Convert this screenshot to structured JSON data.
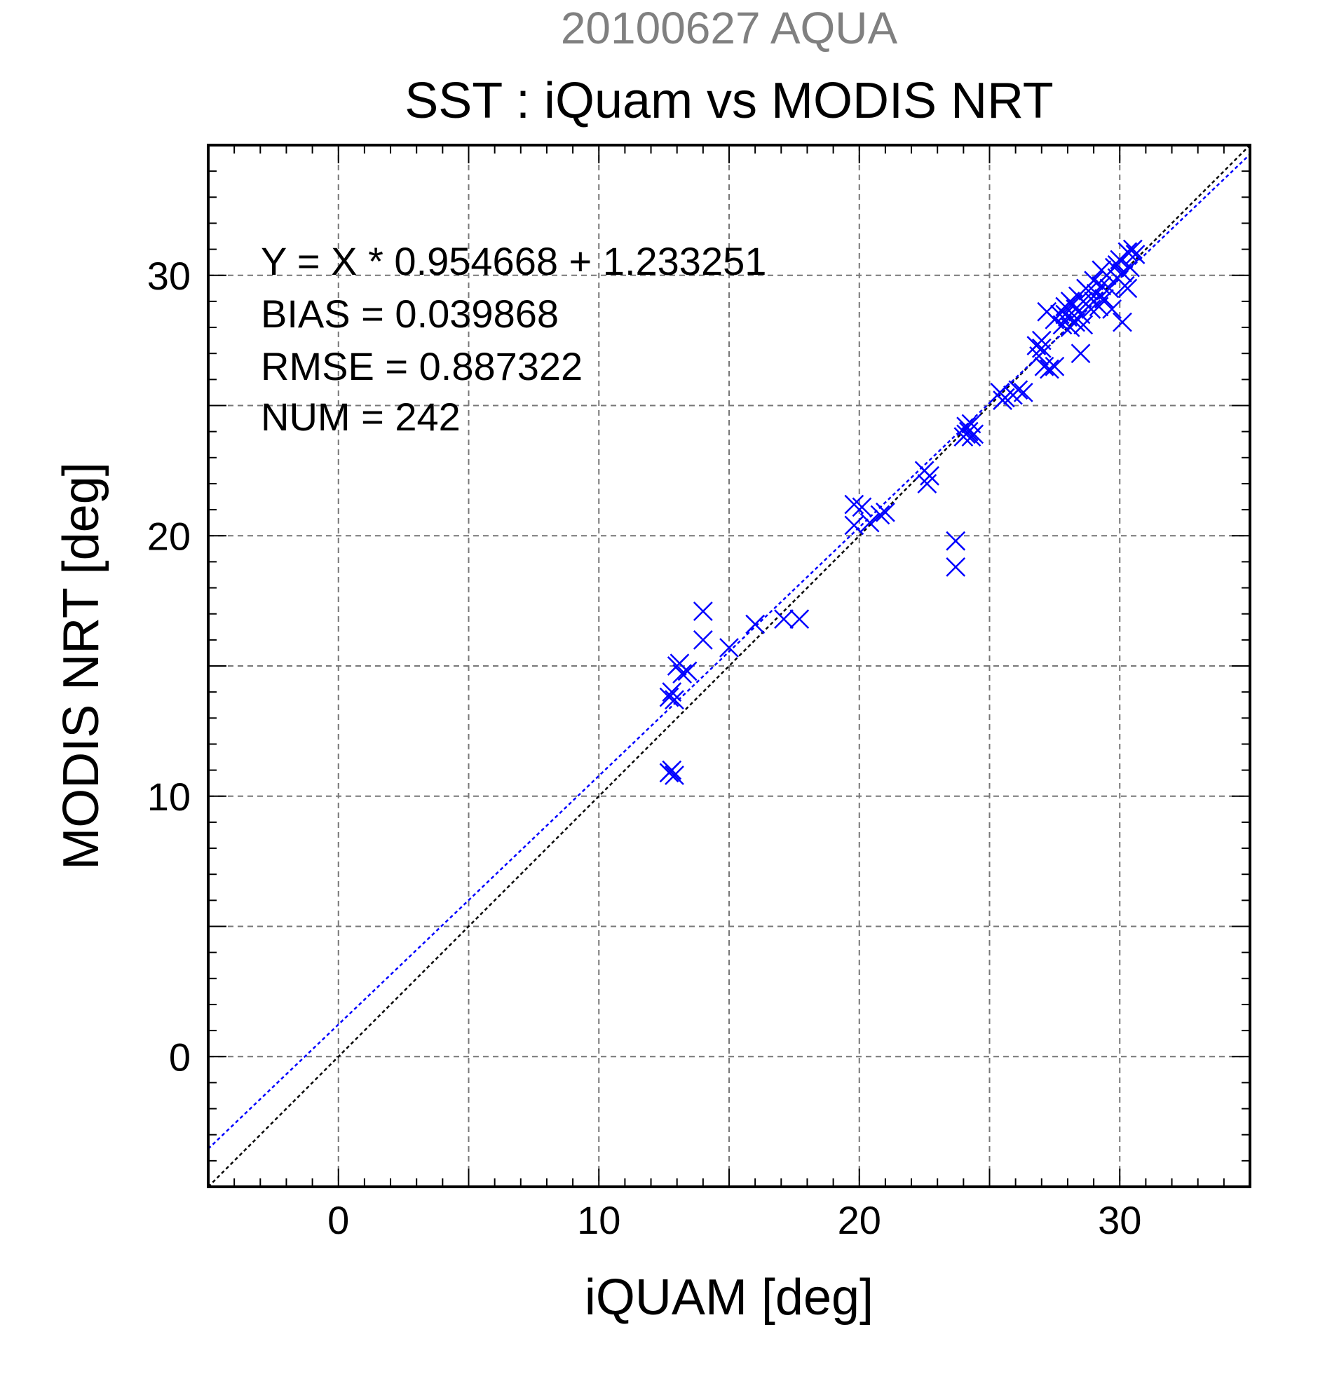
{
  "chart_data": {
    "type": "scatter",
    "supertitle": "20100627 AQUA",
    "title": "SST : iQuam vs MODIS NRT",
    "xlabel": "iQUAM [deg]",
    "ylabel": "MODIS NRT [deg]",
    "xlim": [
      -5,
      35
    ],
    "ylim": [
      -5,
      35
    ],
    "x_ticks": [
      0,
      10,
      20,
      30
    ],
    "y_ticks": [
      0,
      10,
      20,
      30
    ],
    "grid": true,
    "stats": {
      "equation": "Y = X * 0.954668 + 1.233251",
      "bias": "BIAS = 0.039868",
      "rmse": "RMSE = 0.887322",
      "num": "NUM = 242"
    },
    "regression": {
      "slope": 0.954668,
      "intercept": 1.233251
    },
    "series": [
      {
        "marker": "x",
        "color": "#0000ff",
        "points": [
          [
            12.7,
            13.8
          ],
          [
            12.8,
            14.0
          ],
          [
            12.9,
            13.7
          ],
          [
            12.8,
            11.0
          ],
          [
            12.9,
            10.8
          ],
          [
            12.7,
            10.9
          ],
          [
            13.0,
            15.0
          ],
          [
            13.2,
            14.7
          ],
          [
            13.4,
            14.8
          ],
          [
            13.1,
            15.1
          ],
          [
            14.0,
            17.1
          ],
          [
            14.0,
            16.0
          ],
          [
            15.0,
            15.7
          ],
          [
            16.0,
            16.6
          ],
          [
            17.1,
            16.8
          ],
          [
            17.7,
            16.8
          ],
          [
            19.8,
            21.2
          ],
          [
            19.8,
            20.4
          ],
          [
            20.1,
            21.1
          ],
          [
            20.4,
            20.5
          ],
          [
            20.8,
            20.8
          ],
          [
            21.0,
            20.9
          ],
          [
            22.5,
            22.5
          ],
          [
            22.7,
            22.3
          ],
          [
            22.6,
            22.0
          ],
          [
            23.7,
            19.8
          ],
          [
            23.7,
            18.8
          ],
          [
            24.0,
            23.8
          ],
          [
            24.1,
            23.9
          ],
          [
            24.2,
            24.0
          ],
          [
            24.3,
            23.8
          ],
          [
            24.4,
            23.9
          ],
          [
            24.1,
            24.2
          ],
          [
            24.3,
            24.3
          ],
          [
            25.4,
            25.5
          ],
          [
            25.6,
            25.3
          ],
          [
            25.9,
            25.4
          ],
          [
            26.1,
            25.6
          ],
          [
            26.3,
            25.5
          ],
          [
            25.5,
            25.2
          ],
          [
            26.8,
            27.3
          ],
          [
            26.9,
            26.9
          ],
          [
            27.0,
            27.2
          ],
          [
            27.1,
            26.5
          ],
          [
            27.3,
            26.4
          ],
          [
            27.5,
            26.5
          ],
          [
            27.0,
            27.5
          ],
          [
            27.2,
            28.6
          ],
          [
            27.5,
            28.3
          ],
          [
            27.7,
            28.5
          ],
          [
            27.8,
            28.1
          ],
          [
            28.0,
            28.4
          ],
          [
            27.9,
            28.8
          ],
          [
            28.1,
            28.0
          ],
          [
            28.2,
            28.9
          ],
          [
            28.3,
            28.2
          ],
          [
            28.4,
            29.2
          ],
          [
            28.5,
            28.5
          ],
          [
            28.6,
            28.1
          ],
          [
            28.7,
            28.9
          ],
          [
            28.8,
            29.4
          ],
          [
            28.5,
            27.0
          ],
          [
            28.4,
            28.6
          ],
          [
            28.6,
            29.0
          ],
          [
            28.9,
            28.7
          ],
          [
            29.0,
            29.8
          ],
          [
            29.1,
            29.3
          ],
          [
            29.2,
            28.8
          ],
          [
            29.3,
            29.6
          ],
          [
            29.4,
            29.1
          ],
          [
            29.5,
            30.0
          ],
          [
            29.6,
            29.5
          ],
          [
            29.7,
            28.7
          ],
          [
            29.8,
            30.3
          ],
          [
            29.9,
            29.9
          ],
          [
            30.0,
            30.6
          ],
          [
            30.1,
            30.1
          ],
          [
            30.2,
            29.6
          ],
          [
            30.1,
            28.2
          ],
          [
            30.3,
            30.9
          ],
          [
            30.4,
            30.3
          ],
          [
            30.5,
            31.0
          ],
          [
            30.6,
            30.8
          ],
          [
            30.3,
            29.5
          ],
          [
            29.0,
            29.0
          ],
          [
            28.3,
            28.7
          ],
          [
            28.7,
            29.5
          ],
          [
            29.3,
            30.2
          ],
          [
            29.9,
            30.4
          ],
          [
            27.9,
            28.5
          ],
          [
            28.1,
            29.0
          ]
        ]
      }
    ],
    "reference_lines": [
      {
        "name": "1:1",
        "color": "#000000"
      },
      {
        "name": "regression",
        "color": "#0000ff"
      }
    ]
  }
}
